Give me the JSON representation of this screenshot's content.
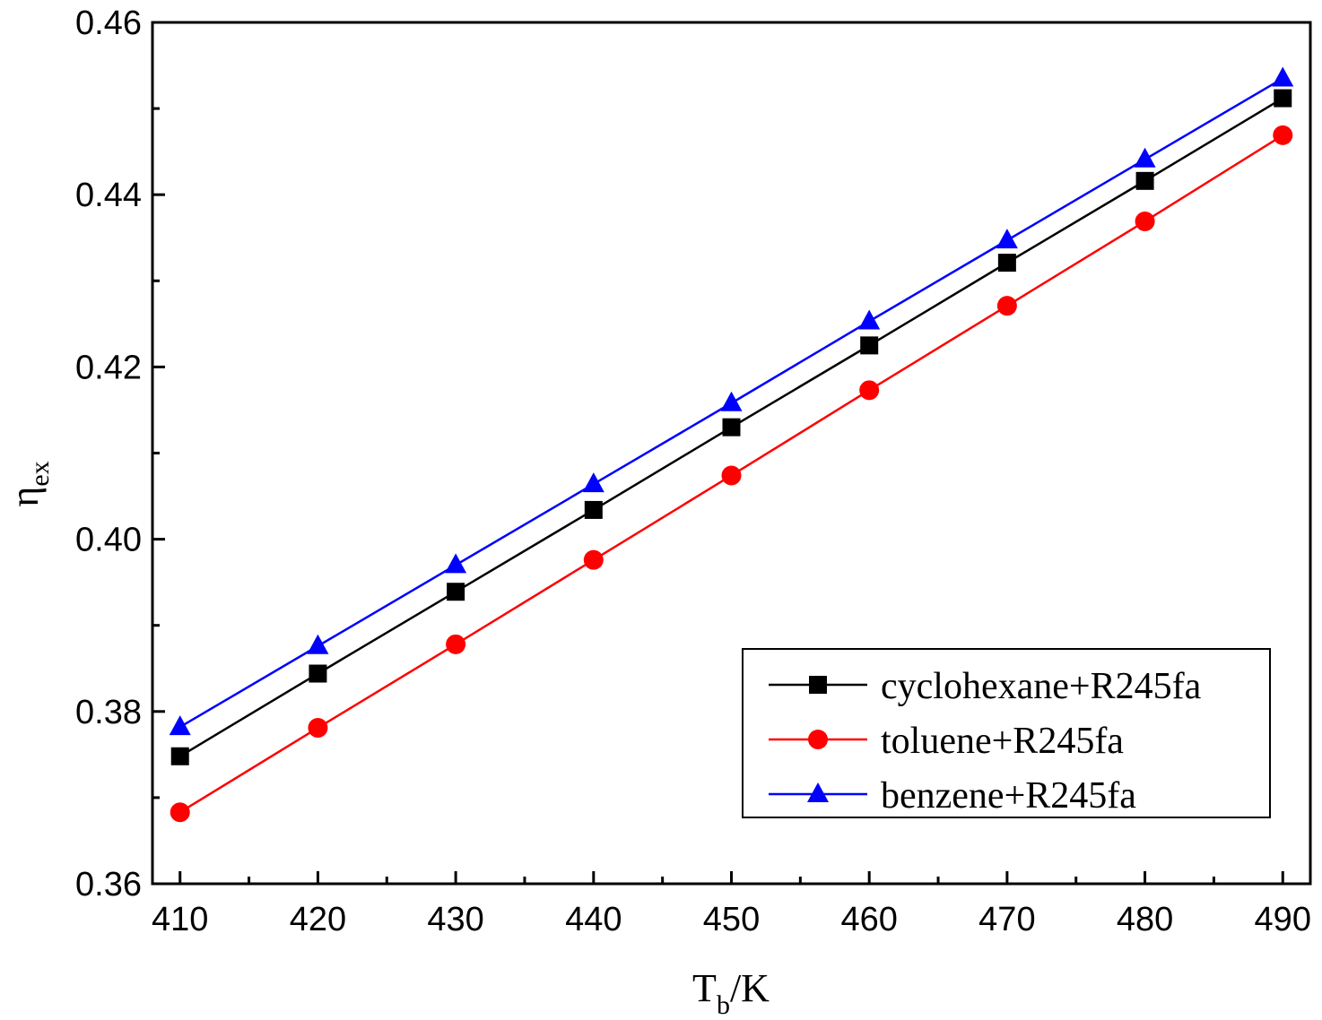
{
  "chart_data": {
    "type": "line",
    "title": "",
    "xlabel": {
      "main": "T",
      "sub": "b",
      "suffix": "/K"
    },
    "ylabel": {
      "main": "η",
      "sub": "ex"
    },
    "x": [
      410,
      420,
      430,
      440,
      450,
      460,
      470,
      480,
      490
    ],
    "xlim": [
      408,
      492
    ],
    "ylim": [
      0.36,
      0.46
    ],
    "xticks": [
      410,
      420,
      430,
      440,
      450,
      460,
      470,
      480,
      490
    ],
    "xtick_labels": [
      "410",
      "420",
      "430",
      "440",
      "450",
      "460",
      "470",
      "480",
      "490"
    ],
    "yticks": [
      0.36,
      0.38,
      0.4,
      0.42,
      0.44,
      0.46
    ],
    "ytick_labels": [
      "0.36",
      "0.38",
      "0.40",
      "0.42",
      "0.44",
      "0.46"
    ],
    "grid": false,
    "legend_position": "bottom-right",
    "series": [
      {
        "name": "cyclohexane+R245fa",
        "color": "#000000",
        "marker": "square",
        "values": [
          0.3748,
          0.3844,
          0.3939,
          0.4034,
          0.413,
          0.4225,
          0.4321,
          0.4416,
          0.4512
        ]
      },
      {
        "name": "toluene+R245fa",
        "color": "#ff0000",
        "marker": "circle",
        "values": [
          0.3683,
          0.3781,
          0.3878,
          0.3976,
          0.4074,
          0.4173,
          0.4271,
          0.4369,
          0.4469
        ]
      },
      {
        "name": "benzene+R245fa",
        "color": "#0000ff",
        "marker": "triangle",
        "values": [
          0.3782,
          0.3876,
          0.397,
          0.4064,
          0.4158,
          0.4253,
          0.4347,
          0.4441,
          0.4535
        ]
      }
    ]
  }
}
